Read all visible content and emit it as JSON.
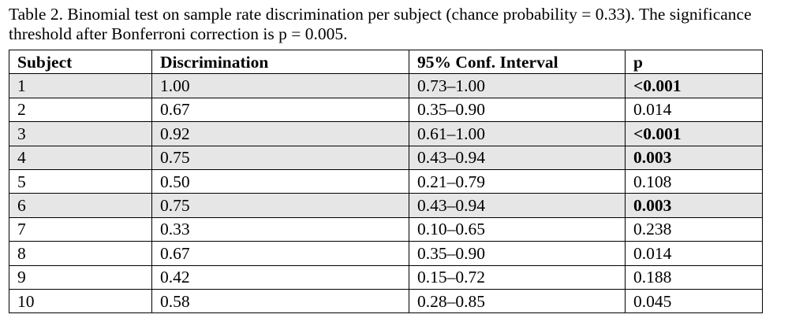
{
  "caption": "Table 2. Binomial test on sample rate discrimination per subject (chance probability = 0.33). The significance threshold after Bonferroni correction is p = 0.005.",
  "table": {
    "headers": [
      "Subject",
      "Discrimination",
      "95% Conf. Interval",
      "p"
    ],
    "rows": [
      {
        "subject": "1",
        "discrimination": "1.00",
        "ci": "0.73–1.00",
        "p": "<0.001",
        "shaded": true,
        "p_bold": true
      },
      {
        "subject": "2",
        "discrimination": "0.67",
        "ci": "0.35–0.90",
        "p": "0.014",
        "shaded": false,
        "p_bold": false
      },
      {
        "subject": "3",
        "discrimination": "0.92",
        "ci": "0.61–1.00",
        "p": "<0.001",
        "shaded": true,
        "p_bold": true
      },
      {
        "subject": "4",
        "discrimination": "0.75",
        "ci": "0.43–0.94",
        "p": "0.003",
        "shaded": true,
        "p_bold": true
      },
      {
        "subject": "5",
        "discrimination": "0.50",
        "ci": "0.21–0.79",
        "p": "0.108",
        "shaded": false,
        "p_bold": false
      },
      {
        "subject": "6",
        "discrimination": "0.75",
        "ci": "0.43–0.94",
        "p": "0.003",
        "shaded": true,
        "p_bold": true
      },
      {
        "subject": "7",
        "discrimination": "0.33",
        "ci": "0.10–0.65",
        "p": "0.238",
        "shaded": false,
        "p_bold": false
      },
      {
        "subject": "8",
        "discrimination": "0.67",
        "ci": "0.35–0.90",
        "p": "0.014",
        "shaded": false,
        "p_bold": false
      },
      {
        "subject": "9",
        "discrimination": "0.42",
        "ci": "0.15–0.72",
        "p": "0.188",
        "shaded": false,
        "p_bold": false
      },
      {
        "subject": "10",
        "discrimination": "0.58",
        "ci": "0.28–0.85",
        "p": "0.045",
        "shaded": false,
        "p_bold": false
      }
    ],
    "colors": {
      "shaded_row": "#e6e6e6",
      "border": "#000000"
    }
  }
}
